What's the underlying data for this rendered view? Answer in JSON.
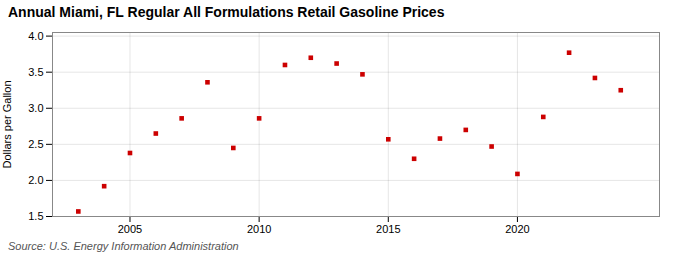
{
  "chart_data": {
    "type": "scatter",
    "title": "Annual Miami, FL Regular All Formulations Retail Gasoline Prices",
    "ylabel": "Dollars per Gallon",
    "source": "Source: U.S. Energy Information Administration",
    "x": [
      2003,
      2004,
      2005,
      2006,
      2007,
      2008,
      2009,
      2010,
      2011,
      2012,
      2013,
      2014,
      2015,
      2016,
      2017,
      2018,
      2019,
      2020,
      2021,
      2022,
      2023,
      2024
    ],
    "values": [
      1.57,
      1.92,
      2.38,
      2.65,
      2.86,
      3.36,
      2.45,
      2.86,
      3.6,
      3.7,
      3.62,
      3.47,
      2.57,
      2.3,
      2.58,
      2.7,
      2.47,
      2.09,
      2.88,
      3.77,
      3.42,
      3.25
    ],
    "color": "#cc0000",
    "marker": "square",
    "xlim": [
      2002.0,
      2025.5
    ],
    "ylim": [
      1.5,
      4.05
    ],
    "xticks": [
      2005,
      2010,
      2015,
      2020
    ],
    "yticks": [
      1.5,
      {
        "value": 2.0,
        "label": "2.0"
      },
      2.5,
      {
        "value": 3.0,
        "label": "3.0"
      },
      3.5,
      {
        "value": 4.0,
        "label": "4.0"
      }
    ],
    "grid": true
  }
}
